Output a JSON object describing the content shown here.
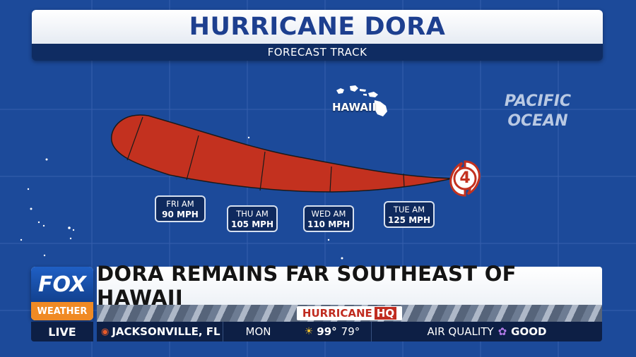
{
  "title": "HURRICANE DORA",
  "subtitle": "FORECAST TRACK",
  "map": {
    "island_label": "HAWAII",
    "ocean_label_line1": "PACIFIC",
    "ocean_label_line2": "OCEAN",
    "storm_category": "4",
    "colors": {
      "background": "#1c4a9a",
      "cone_fill": "#c3311f",
      "grid": "#3d66b3",
      "land": "#ffffff"
    }
  },
  "forecast_points": [
    {
      "day": "FRI AM",
      "wind": "90 MPH"
    },
    {
      "day": "THU AM",
      "wind": "105 MPH"
    },
    {
      "day": "WED AM",
      "wind": "110 MPH"
    },
    {
      "day": "TUE AM",
      "wind": "125 MPH"
    }
  ],
  "bug": {
    "logo_top": "FOX",
    "logo_bottom": "WEATHER",
    "live": "LIVE",
    "headline": "DORA REMAINS FAR SOUTHEAST OF HAWAII",
    "hq_word": "HURRICANE",
    "hq_suffix": "HQ",
    "colors": {
      "logo_orange": "#f08a24",
      "logo_blue": "#1f5fc4",
      "hq_red": "#c02c20"
    }
  },
  "ticker": {
    "location": "JACKSONVILLE, FL",
    "day": "MON",
    "high": "99°",
    "low": "79°",
    "air_quality_label": "AIR QUALITY",
    "air_quality_value": "GOOD",
    "icons": [
      "location-pin-icon",
      "sun-icon",
      "flower-icon"
    ]
  }
}
